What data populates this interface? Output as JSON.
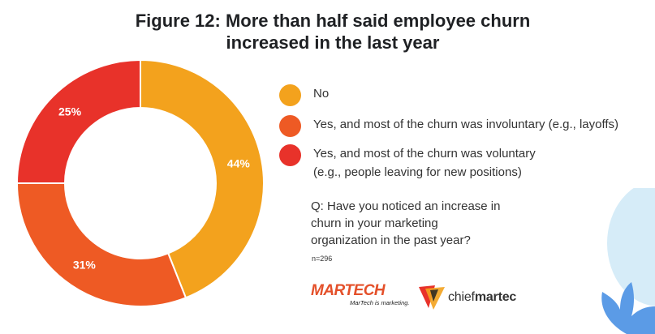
{
  "title": {
    "line1": "Figure 12: More than half said employee churn",
    "line2": "increased in the last year"
  },
  "chart_data": {
    "type": "pie",
    "variant": "donut",
    "start": "top, clockwise",
    "slices": [
      {
        "label": "No",
        "value": 44,
        "display": "44%",
        "color": "#f3a21d"
      },
      {
        "label": "Yes, and most of the churn was involuntary (e.g., layoffs)",
        "value": 31,
        "display": "31%",
        "color": "#ee5a24"
      },
      {
        "label": "Yes, and most of the churn was voluntary (e.g., people leaving for new positions)",
        "value": 25,
        "display": "25%",
        "color": "#e8322a"
      }
    ]
  },
  "legend": {
    "items": [
      {
        "lines": [
          "No"
        ],
        "color": "#f3a21d"
      },
      {
        "lines": [
          "Yes, and most of the churn was involuntary (e.g., layoffs)"
        ],
        "color": "#ee5a24"
      },
      {
        "lines": [
          "Yes, and most of the churn was voluntary",
          "(e.g., people leaving for new positions)"
        ],
        "color": "#e8322a"
      }
    ]
  },
  "question": {
    "lines": [
      "Q: Have you noticed an increase in",
      "churn in your marketing",
      "organization in the past year?"
    ]
  },
  "sample_size": "n=296",
  "logos": {
    "martech": {
      "name": "MARTECH",
      "tagline": "MarTech is marketing.",
      "color": "#e4502a"
    },
    "chiefmartec": {
      "prefix": "chief",
      "suffix": "martec"
    }
  },
  "decoration": {
    "blob_color": "#d6ecf8",
    "leaf_color": "#5b9be6"
  }
}
